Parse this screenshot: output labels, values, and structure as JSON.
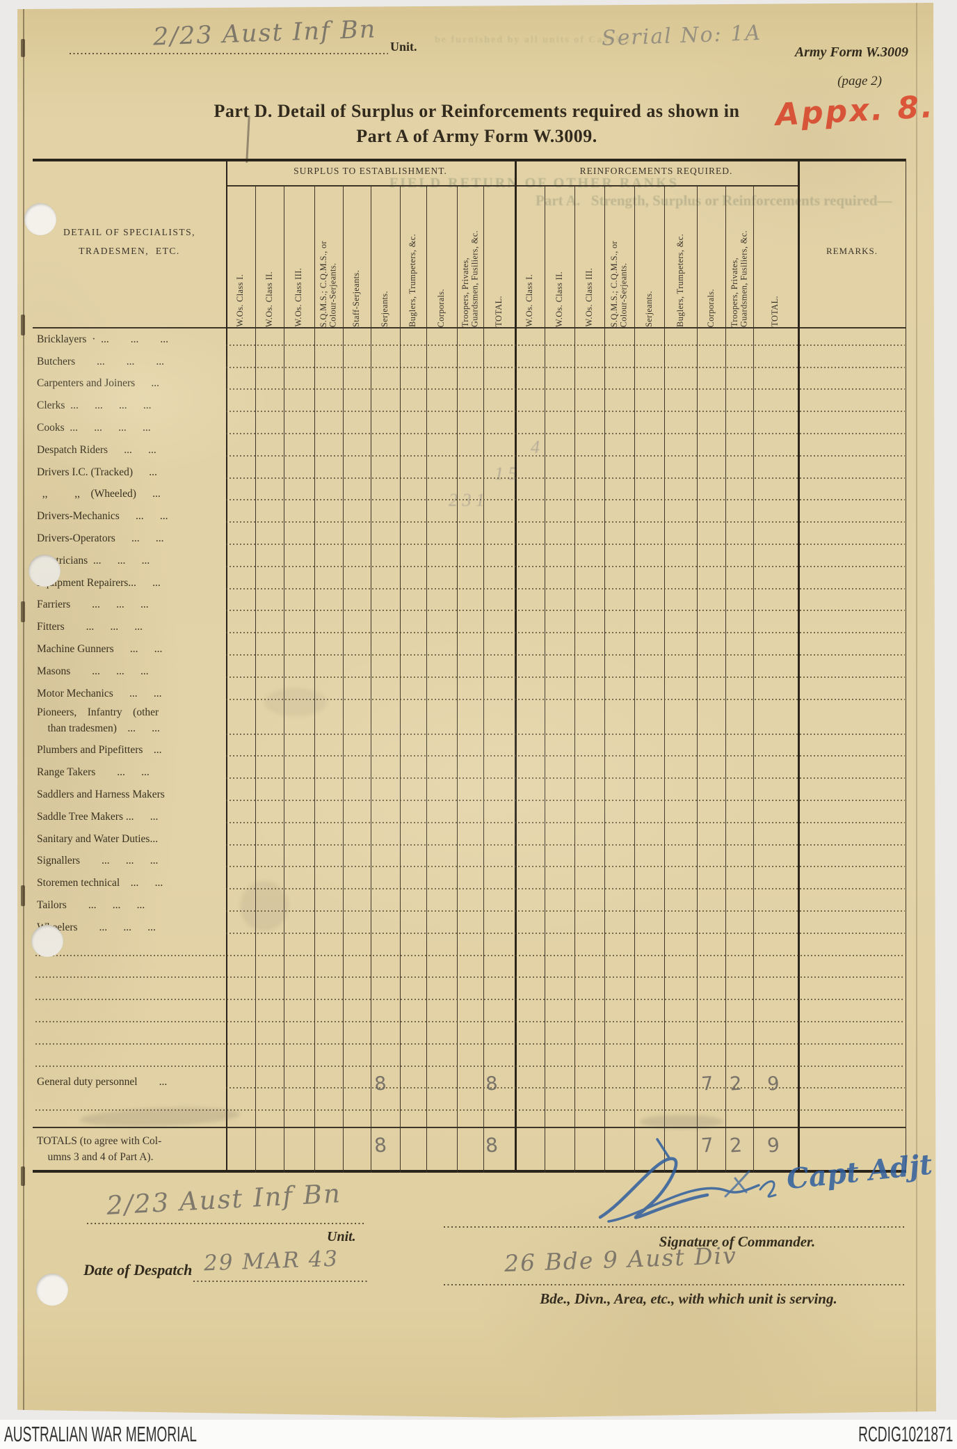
{
  "header": {
    "handwritten_unit": "2/23 Aust Inf Bn",
    "unit_label": "Unit.",
    "serial_note": "Serial No:   1A",
    "form_name": "Army Form W.3009",
    "page_note": "(page 2)",
    "appendix_note": "Appx. 8.",
    "title_line1": "Part D.   Detail of Surplus or Reinforcements required as shown in",
    "title_line2": "Part A of Army Form W.3009."
  },
  "table": {
    "detail_header_line1": "DETAIL OF SPECIALISTS,",
    "detail_header_line2": "TRADESMEN,  ETC.",
    "surplus_title": "SURPLUS TO ESTABLISHMENT.",
    "reinforcements_title": "REINFORCEMENTS REQUIRED.",
    "remarks_title": "REMARKS.",
    "surplus_columns": [
      "W.Os. Class I.",
      "W.Os. Class II.",
      "W.Os. Class III.",
      "S.Q.M.S.; C.Q.M.S., or\nColour-Serjeants.",
      "Staff-Serjeants.",
      "Serjeants.",
      "Buglers, Trumpeters, &c.",
      "Corporals.",
      "Troopers, Privates,\nGuardsmen, Fusiliers, &c.",
      "TOTAL."
    ],
    "reinforcement_columns": [
      "W.Os. Class I.",
      "W.Os. Class II.",
      "W.Os. Class III.",
      "S.Q.M.S.; C.Q.M.S., or\nColour-Serjeants.",
      "Serjeants.",
      "Buglers, Trumpeters, &c.",
      "Corporals.",
      "Troopers, Privates,\nGuardsmen, Fusiliers, &c.",
      "TOTAL."
    ],
    "rows": [
      "Bricklayers · ...  ...  ...",
      "Butchers  ...  ...  ...",
      "Carpenters and Joiners  ...",
      "Clerks ...  ...  ...  ...",
      "Cooks ...  ...  ...  ...",
      "Despatch Riders  ...  ...",
      "Drivers I.C. (Tracked)  ...",
      " ,,   ,,  (Wheeled)  ...",
      "Drivers-Mechanics  ...  ...",
      "Drivers-Operators  ...  ...",
      "Electricians ...  ...  ...",
      "Equipment Repairers...  ...",
      "Farriers  ...  ...  ...",
      "Fitters  ...  ...  ...",
      "Machine Gunners  ...  ...",
      "Masons  ...  ...  ...",
      "Motor Mechanics  ...  ...",
      "Pioneers,  Infantry  (other\n  than tradesmen)  ...  ...",
      "Plumbers and Pipefitters  ...",
      "Range Takers  ...  ...",
      "Saddlers and Harness Makers",
      "Saddle Tree Makers ...  ...",
      "Sanitary and Water Duties...",
      "Signallers  ...  ...  ...",
      "Storemen technical  ...  ...",
      "Tailors  ...  ...  ...",
      "Wheelers  ...  ...  ..."
    ],
    "blank_rows_after": 6,
    "general_duty_row": {
      "label": "General duty personnel  ...",
      "values": {
        "surplus_serjeants": "8",
        "surplus_total": "8",
        "reinf_corporals": "7",
        "reinf_troopers": "2",
        "reinf_total": "9"
      }
    },
    "totals_row": {
      "label_line1": "TOTALS (to agree with Col-",
      "label_line2": "umns 3 and 4 of Part A).",
      "values": {
        "surplus_serjeants": "8",
        "surplus_total": "8",
        "reinf_corporals": "7",
        "reinf_troopers": "2",
        "reinf_total": "9"
      }
    }
  },
  "signature_block": {
    "signature_text": "Capt Adjt",
    "signature_label": "Signature of Commander.",
    "unit_handwritten": "2/23 Aust Inf Bn",
    "unit_label": "Unit.",
    "date_label": "Date of Despatch",
    "date_value": "29 MAR 43",
    "serving_value": "26 Bde 9 Aust Div",
    "serving_label": "Bde., Divn., Area, etc., with which unit is serving."
  },
  "bleedthrough": {
    "line1": "FIELD RETURN OF OTHER RANKS",
    "line2": "be furnished by all units of Cavalry,",
    "line3": "Part A.   Strength, Surplus or Reinforcements required—",
    "num1": "4",
    "num2": "1 5",
    "num3": "2 3 1"
  },
  "archive_bar": {
    "left_text": "AUSTRALIAN WAR MEMORIAL",
    "right_text": "RCDIG1021871"
  },
  "colors": {
    "paper": "#e2d2a6",
    "ink": "#36301f",
    "pencil": "#6e6a63",
    "blue_ink": "#2f5f9f",
    "red": "#dd4a30"
  }
}
